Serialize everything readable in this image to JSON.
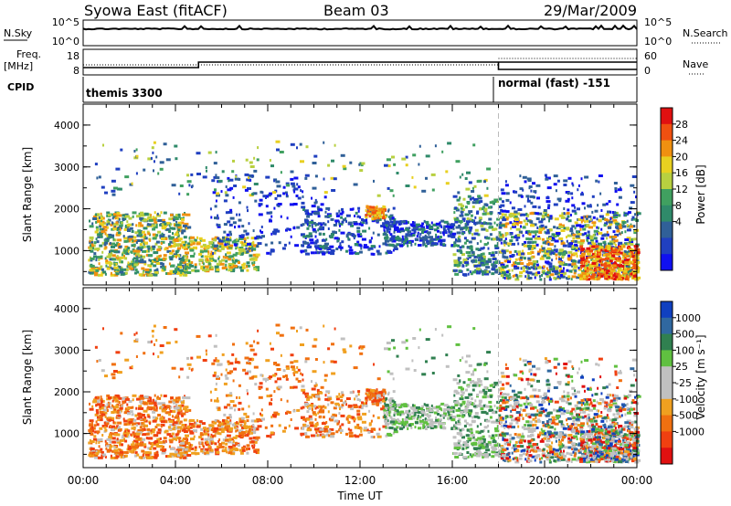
{
  "header": {
    "title": "Syowa East (fitACF)",
    "beam": "Beam 03",
    "date": "29/Mar/2009"
  },
  "status_panels": {
    "nsky_label": "N.Sky",
    "nsearch_label": "N.Search",
    "left_ticks": [
      "10^5",
      "10^0"
    ],
    "right_ticks": [
      "10^5",
      "10^0"
    ],
    "freq_label_1": "Freq.",
    "freq_label_2": "[MHz]",
    "freq_ticks": [
      "18",
      "8"
    ],
    "nave_label": "Nave",
    "nave_ticks": [
      "60",
      "0"
    ],
    "cpid_label": "CPID",
    "cpid_segments": [
      "themis 3300",
      "normal (fast) -151"
    ]
  },
  "colorbars": {
    "power": {
      "label": "Power [dB]",
      "ticks": [
        "28",
        "24",
        "20",
        "16",
        "12",
        "8",
        "4"
      ],
      "colors": [
        "#e01010",
        "#f05010",
        "#f09010",
        "#e8d020",
        "#b8d040",
        "#40a060",
        "#2f8a6a",
        "#306098",
        "#2040c0",
        "#1010f0"
      ]
    },
    "velocity": {
      "label": "Velocity [m s⁻¹]",
      "ticks": [
        "1000",
        "500",
        "100",
        "25",
        "-25",
        "-100",
        "-500",
        "-1000"
      ],
      "colors": [
        "#1040c0",
        "#3068a0",
        "#308050",
        "#60c040",
        "#c0c0c0",
        "#c0c0c0",
        "#f0a020",
        "#f07010",
        "#f04010",
        "#e01010"
      ]
    }
  },
  "chart_data": [
    {
      "type": "heatmap",
      "name": "power",
      "ylabel": "Slant Range [km]",
      "yticks": [
        "4000",
        "3000",
        "2000",
        "1000"
      ],
      "xlabel": "Time UT",
      "xticks": [
        "00:00",
        "04:00",
        "08:00",
        "12:00",
        "16:00",
        "20:00",
        "00:00"
      ],
      "xlim_hours": [
        0,
        24
      ],
      "ylim_km": [
        180,
        4500
      ],
      "clim_db": [
        0,
        30
      ],
      "cpid_change_hour": 18
    },
    {
      "type": "heatmap",
      "name": "velocity",
      "ylabel": "Slant Range [km]",
      "yticks": [
        "4000",
        "3000",
        "2000",
        "1000"
      ],
      "xlabel": "Time UT",
      "xticks": [
        "00:00",
        "04:00",
        "08:00",
        "12:00",
        "16:00",
        "20:00",
        "00:00"
      ],
      "xlim_hours": [
        0,
        24
      ],
      "ylim_km": [
        180,
        4500
      ],
      "clim_ms": [
        -1000,
        1000
      ],
      "cpid_change_hour": 18
    }
  ]
}
